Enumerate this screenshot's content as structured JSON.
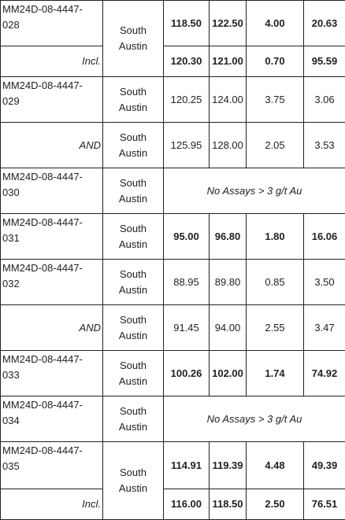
{
  "table": {
    "rows": [
      {
        "hole": "MM24D-08-4447-028",
        "area": "South Austin",
        "values": [
          "118.50",
          "122.50",
          "4.00",
          "20.63"
        ]
      },
      {
        "hole": "Incl.",
        "values": [
          "120.30",
          "121.00",
          "0.70",
          "95.59"
        ]
      },
      {
        "hole": "MM24D-08-4447-029",
        "area": "South Austin",
        "values": [
          "120.25",
          "124.00",
          "3.75",
          "3.06"
        ]
      },
      {
        "hole": "AND",
        "area": "South Austin",
        "values": [
          "125.95",
          "128.00",
          "2.05",
          "3.53"
        ]
      },
      {
        "hole": "MM24D-08-4447-030",
        "area": "South Austin",
        "note": "No Assays > 3 g/t Au"
      },
      {
        "hole": "MM24D-08-4447-031",
        "area": "South Austin",
        "values": [
          "95.00",
          "96.80",
          "1.80",
          "16.06"
        ]
      },
      {
        "hole": "MM24D-08-4447-032",
        "area": "South Austin",
        "values": [
          "88.95",
          "89.80",
          "0.85",
          "3.50"
        ]
      },
      {
        "hole": "AND",
        "area": "South Austin",
        "values": [
          "91.45",
          "94.00",
          "2.55",
          "3.47"
        ]
      },
      {
        "hole": "MM24D-08-4447-033",
        "area": "South Austin",
        "values": [
          "100.26",
          "102.00",
          "1.74",
          "74.92"
        ]
      },
      {
        "hole": "MM24D-08-4447-034",
        "area": "South Austin",
        "note": "No Assays > 3 g/t Au"
      },
      {
        "hole": "MM24D-08-4447-035",
        "area": "South Austin",
        "values": [
          "114.91",
          "119.39",
          "4.48",
          "49.39"
        ]
      },
      {
        "hole": "Incl.",
        "values": [
          "116.00",
          "118.50",
          "2.50",
          "76.51"
        ]
      }
    ]
  }
}
